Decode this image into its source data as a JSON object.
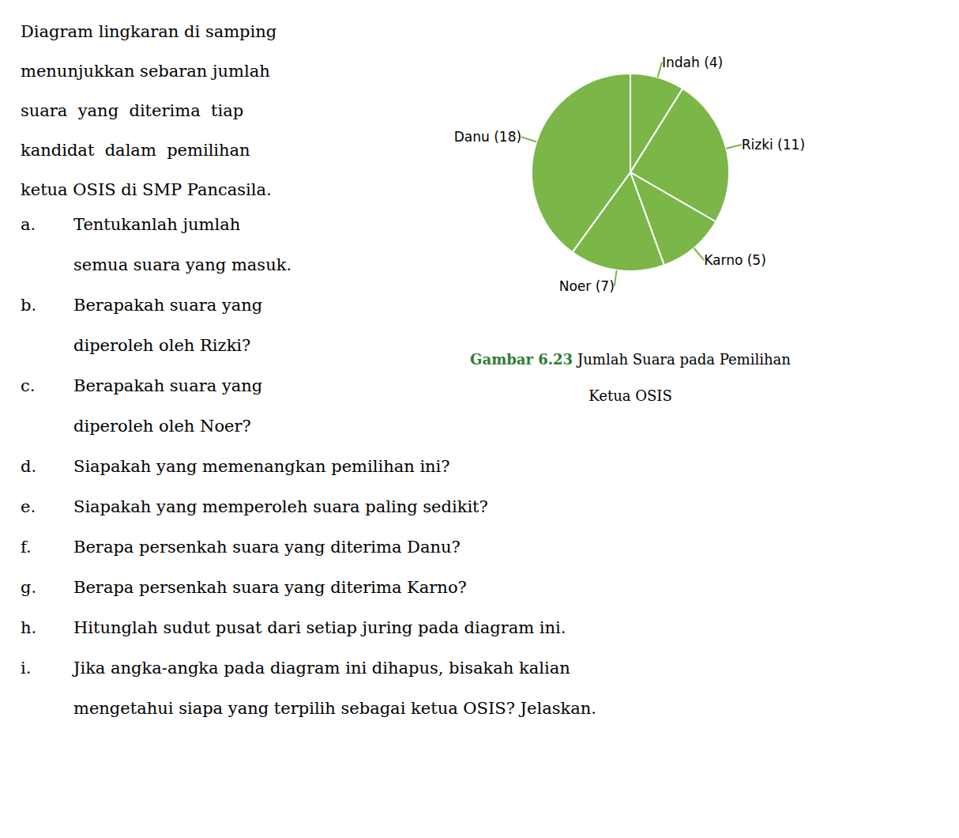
{
  "chart_data": {
    "type": "pie",
    "categories": [
      "Indah (4)",
      "Rizki (11)",
      "Karno (5)",
      "Noer (7)",
      "Danu (18)"
    ],
    "values": [
      4,
      11,
      5,
      7,
      18
    ],
    "color": "#7ab648",
    "annotations": {
      "intro": [
        "Diagram lingkaran di samping",
        "menunjukkan sebaran jumlah",
        "suara  yang  diterima  tiap",
        "kandidat  dalam  pemilihan",
        "ketua OSIS di SMP Pancasila."
      ],
      "questions": [
        {
          "label": "a.",
          "lines": [
            "Tentukanlah jumlah",
            "semua suara yang masuk."
          ]
        },
        {
          "label": "b.",
          "lines": [
            "Berapakah suara yang",
            "diperoleh oleh Rizki?"
          ]
        },
        {
          "label": "c.",
          "lines": [
            "Berapakah suara yang",
            "diperoleh oleh Noer?"
          ]
        },
        {
          "label": "d.",
          "lines": [
            "Siapakah yang memenangkan pemilihan ini?"
          ]
        },
        {
          "label": "e.",
          "lines": [
            "Siapakah yang memperoleh suara paling sedikit?"
          ]
        },
        {
          "label": "f.",
          "lines": [
            "Berapa persenkah suara yang diterima Danu?"
          ]
        },
        {
          "label": "g.",
          "lines": [
            "Berapa persenkah suara yang diterima Karno?"
          ]
        },
        {
          "label": "h.",
          "lines": [
            "Hitunglah sudut pusat dari setiap juring pada diagram ini."
          ]
        },
        {
          "label": "i.",
          "lines": [
            "Jika angka-angka pada diagram ini dihapus, bisakah kalian",
            "mengetahui siapa yang terpilih sebagai ketua OSIS? Jelaskan."
          ]
        }
      ],
      "caption": [
        {
          "text": "Gambar 6.23",
          "color": "#2e7d32"
        },
        {
          "text": "Jumlah Suara pada Pemilihan"
        },
        {
          "text": "Ketua OSIS"
        }
      ]
    }
  }
}
